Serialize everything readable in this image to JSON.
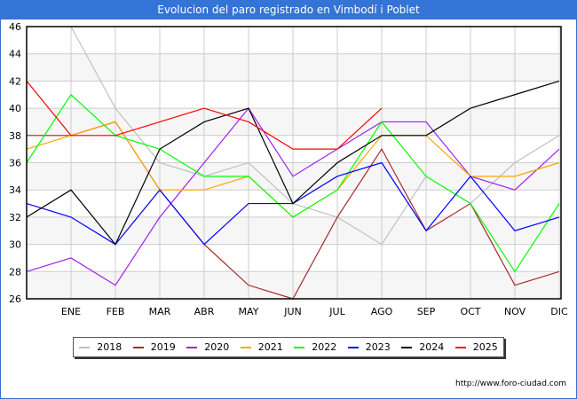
{
  "title": "Evolucion del paro registrado en Vimbodí i Poblet",
  "footer_url": "http://www.foro-ciudad.com",
  "colors": {
    "title_bar": "#3474d6",
    "grid": "#cccccc",
    "band": "#f6f6f6"
  },
  "chart_data": {
    "type": "line",
    "title": "Evolucion del paro registrado en Vimbodí i Poblet",
    "xlabel": "",
    "ylabel": "",
    "categories": [
      "",
      "ENE",
      "FEB",
      "MAR",
      "ABR",
      "MAY",
      "JUN",
      "JUL",
      "AGO",
      "SEP",
      "OCT",
      "NOV",
      "DIC"
    ],
    "ylim": [
      26,
      46
    ],
    "yticks": [
      26,
      28,
      30,
      32,
      34,
      36,
      38,
      40,
      42,
      44,
      46
    ],
    "grid": true,
    "legend_position": "bottom",
    "series": [
      {
        "name": "2018",
        "color": "#c0c0c0",
        "values": [
          null,
          46,
          40,
          36,
          35,
          36,
          33,
          32,
          30,
          35,
          33,
          36,
          38
        ]
      },
      {
        "name": "2019",
        "color": "#a52a2a",
        "values": [
          38,
          38,
          39,
          34,
          30,
          27,
          26,
          32,
          37,
          31,
          33,
          27,
          28
        ]
      },
      {
        "name": "2020",
        "color": "#a020f0",
        "values": [
          28,
          29,
          27,
          32,
          36,
          40,
          35,
          37,
          39,
          39,
          35,
          34,
          37
        ]
      },
      {
        "name": "2021",
        "color": "#ffa500",
        "values": [
          37,
          38,
          39,
          34,
          34,
          35,
          32,
          34,
          38,
          38,
          35,
          35,
          36
        ]
      },
      {
        "name": "2022",
        "color": "#00ff00",
        "values": [
          36,
          41,
          38,
          37,
          35,
          35,
          32,
          34,
          39,
          35,
          33,
          28,
          33
        ]
      },
      {
        "name": "2023",
        "color": "#0000ff",
        "values": [
          33,
          32,
          30,
          34,
          30,
          33,
          33,
          35,
          36,
          31,
          35,
          31,
          32
        ]
      },
      {
        "name": "2024",
        "color": "#000000",
        "values": [
          32,
          34,
          30,
          37,
          39,
          40,
          33,
          36,
          38,
          38,
          40,
          41,
          42
        ]
      },
      {
        "name": "2025",
        "color": "#ff0000",
        "values": [
          42,
          38,
          38,
          39,
          40,
          39,
          37,
          37,
          40,
          null,
          null,
          null,
          null
        ]
      }
    ]
  }
}
